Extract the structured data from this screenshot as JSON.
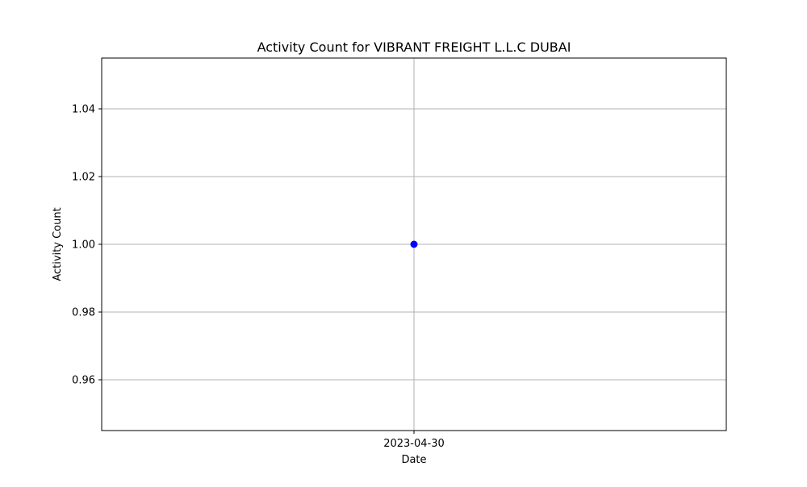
{
  "chart_data": {
    "type": "line",
    "title": "Activity Count for VIBRANT FREIGHT L.L.C DUBAI",
    "xlabel": "Date",
    "ylabel": "Activity Count",
    "x_categories": [
      "2023-04-30"
    ],
    "series": [
      {
        "x": [
          "2023-04-30"
        ],
        "values": [
          1.0
        ],
        "color": "#0000ff",
        "marker": "circle"
      }
    ],
    "ylim": [
      0.945,
      1.055
    ],
    "yticks": [
      0.96,
      0.98,
      1.0,
      1.02,
      1.04
    ],
    "ytick_labels": [
      "0.96",
      "0.98",
      "1.00",
      "1.02",
      "1.04"
    ],
    "grid": true
  }
}
